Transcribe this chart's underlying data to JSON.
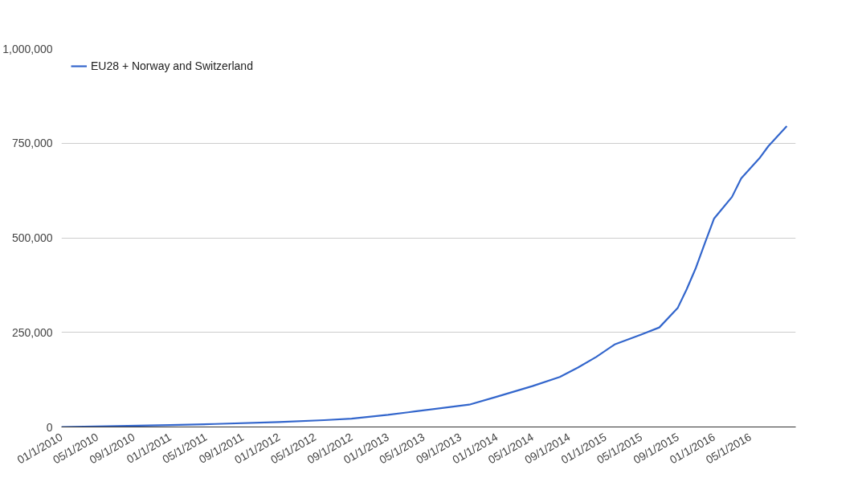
{
  "chart_data": {
    "type": "line",
    "x": [
      "2010-01",
      "2010-06",
      "2011-01",
      "2011-06",
      "2012-01",
      "2012-06",
      "2012-09",
      "2013-01",
      "2013-04",
      "2013-10",
      "2014-01",
      "2014-05",
      "2014-08",
      "2014-10",
      "2014-12",
      "2015-02",
      "2015-05",
      "2015-07",
      "2015-09",
      "2015-10",
      "2015-11",
      "2015-12",
      "2016-01",
      "2016-03",
      "2016-04",
      "2016-06",
      "2016-07",
      "2016-09"
    ],
    "series": [
      {
        "name": "EU28 + Norway and Switzerland",
        "color": "#3366cc",
        "values": [
          0,
          2000,
          5000,
          8000,
          13000,
          18000,
          22000,
          32000,
          41000,
          59000,
          80000,
          108000,
          132000,
          157000,
          185000,
          218000,
          244000,
          263000,
          315000,
          364000,
          421000,
          486000,
          551000,
          608000,
          657000,
          710000,
          742000,
          795000
        ]
      }
    ],
    "xlim": [
      "2010-01",
      "2016-10"
    ],
    "xticks": [
      {
        "value": "2010-01",
        "label": "01/1/2010"
      },
      {
        "value": "2010-05",
        "label": "05/1/2010"
      },
      {
        "value": "2010-09",
        "label": "09/1/2010"
      },
      {
        "value": "2011-01",
        "label": "01/1/2011"
      },
      {
        "value": "2011-05",
        "label": "05/1/2011"
      },
      {
        "value": "2011-09",
        "label": "09/1/2011"
      },
      {
        "value": "2012-01",
        "label": "01/1/2012"
      },
      {
        "value": "2012-05",
        "label": "05/1/2012"
      },
      {
        "value": "2012-09",
        "label": "09/1/2012"
      },
      {
        "value": "2013-01",
        "label": "01/1/2013"
      },
      {
        "value": "2013-05",
        "label": "05/1/2013"
      },
      {
        "value": "2013-09",
        "label": "09/1/2013"
      },
      {
        "value": "2014-01",
        "label": "01/1/2014"
      },
      {
        "value": "2014-05",
        "label": "05/1/2014"
      },
      {
        "value": "2014-09",
        "label": "09/1/2014"
      },
      {
        "value": "2015-01",
        "label": "01/1/2015"
      },
      {
        "value": "2015-05",
        "label": "05/1/2015"
      },
      {
        "value": "2015-09",
        "label": "09/1/2015"
      },
      {
        "value": "2016-01",
        "label": "01/1/2016"
      },
      {
        "value": "2016-05",
        "label": "05/1/2016"
      }
    ],
    "ylim": [
      0,
      1000000
    ],
    "yticks": [
      {
        "value": 0,
        "label": "0"
      },
      {
        "value": 250000,
        "label": "250,000"
      },
      {
        "value": 500000,
        "label": "500,000"
      },
      {
        "value": 750000,
        "label": "750,000"
      },
      {
        "value": 1000000,
        "label": "1,000,000"
      }
    ],
    "grid": "y",
    "legend": "top left",
    "line_style": "solid"
  }
}
